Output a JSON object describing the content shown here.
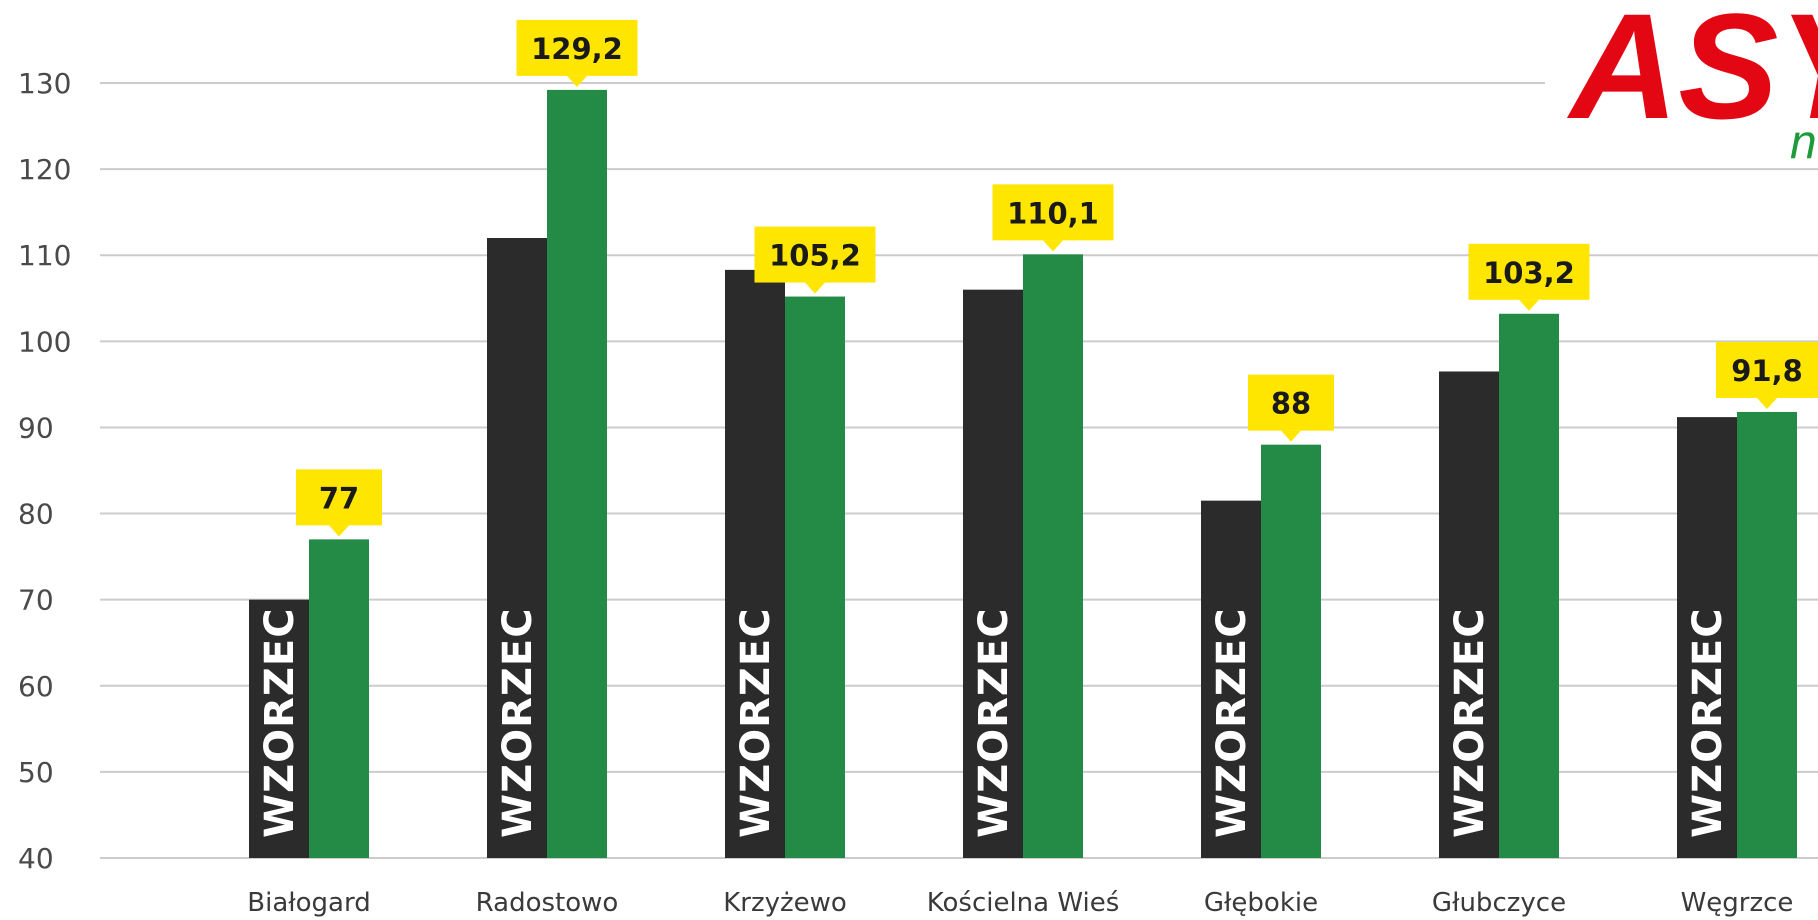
{
  "logo": {
    "main": "ASY",
    "sub": "n"
  },
  "colors": {
    "reference": "#2b2b2b",
    "measured": "#238b45",
    "label_bg": "#ffe600",
    "grid": "#cccccc"
  },
  "chart_data": {
    "type": "bar",
    "title": "",
    "xlabel": "",
    "ylabel": "",
    "ylim": [
      40,
      130
    ],
    "yticks": [
      40,
      50,
      60,
      70,
      80,
      90,
      100,
      110,
      120,
      130
    ],
    "grid": true,
    "categories": [
      "Białogard",
      "Radostowo",
      "Krzyżewo",
      "Kościelna Wieś",
      "Głębokie",
      "Głubczyce",
      "Węgrzce"
    ],
    "series": [
      {
        "name": "WZORZEC",
        "values": [
          70,
          112,
          108.3,
          106,
          81.5,
          96.5,
          91.2
        ]
      },
      {
        "values": [
          77,
          129.2,
          105.2,
          110.1,
          88,
          103.2,
          91.8
        ]
      }
    ],
    "value_labels": [
      "77",
      "129,2",
      "105,2",
      "110,1",
      "88",
      "103,2",
      "91,8"
    ]
  }
}
